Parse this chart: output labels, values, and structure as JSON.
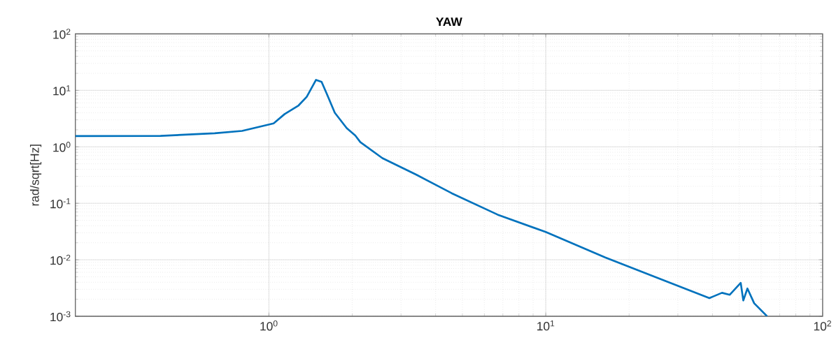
{
  "chart_data": {
    "type": "line",
    "title": "YAW",
    "ylabel": "rad/sqrt[Hz]",
    "log": "xy",
    "grid": true,
    "marker": "none",
    "line_style": "solid",
    "xlim": [
      0.2,
      100
    ],
    "ylim": [
      0.001,
      100
    ],
    "xticks": [
      {
        "value": 1,
        "label": "10$^{0}$"
      },
      {
        "value": 10,
        "label": "10$^{1}$"
      },
      {
        "value": 100,
        "label": "10$^{2}$"
      }
    ],
    "yticks": [
      {
        "value": 0.001,
        "label": "10$^{-3}$"
      },
      {
        "value": 0.01,
        "label": "10$^{-2}$"
      },
      {
        "value": 0.1,
        "label": "10$^{-1}$"
      },
      {
        "value": 1,
        "label": "10$^{0}$"
      },
      {
        "value": 10,
        "label": "10$^{1}$"
      },
      {
        "value": 100,
        "label": "10$^{2}$"
      }
    ],
    "x": [
      0.2,
      0.406,
      0.637,
      0.8,
      1.04,
      1.14,
      1.28,
      1.37,
      1.48,
      1.55,
      1.62,
      1.73,
      1.91,
      2.05,
      2.14,
      2.57,
      3.41,
      4.57,
      6.7,
      10,
      16.4,
      25.8,
      39,
      43.3,
      46.2,
      50.6,
      51.7,
      53.5,
      56.6,
      63
    ],
    "series": [
      {
        "color": "#0072bd",
        "values": [
          1.55,
          1.56,
          1.74,
          1.91,
          2.6,
          3.8,
          5.4,
          7.7,
          15.3,
          14.1,
          8.6,
          4.0,
          2.14,
          1.59,
          1.21,
          0.63,
          0.32,
          0.151,
          0.063,
          0.031,
          0.011,
          0.0046,
          0.0021,
          0.0026,
          0.0024,
          0.0039,
          0.0019,
          0.0031,
          0.0017,
          0.001
        ]
      }
    ]
  }
}
